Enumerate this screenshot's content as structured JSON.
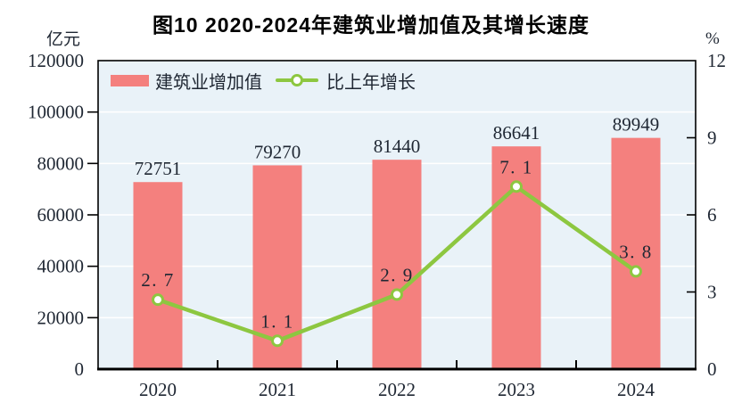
{
  "chart_data": {
    "type": "bar+line",
    "title": "图10  2020-2024年建筑业增加值及其增长速度",
    "categories": [
      "2020",
      "2021",
      "2022",
      "2023",
      "2024"
    ],
    "series": [
      {
        "name": "建筑业增加值",
        "type": "bar",
        "axis": "left",
        "unit": "亿元",
        "values": [
          72751,
          79270,
          81440,
          86641,
          89949
        ],
        "value_labels": [
          "72751",
          "79270",
          "81440",
          "86641",
          "89949"
        ]
      },
      {
        "name": "比上年增长",
        "type": "line",
        "axis": "right",
        "unit": "%",
        "values": [
          2.7,
          1.1,
          2.9,
          7.1,
          3.8
        ],
        "value_labels": [
          "2.7",
          "1.1",
          "2.9",
          "7.1",
          "3.8"
        ]
      }
    ],
    "left_axis": {
      "unit": "亿元",
      "min": 0,
      "max": 120000,
      "step": 20000,
      "tick_labels": [
        "0",
        "20000",
        "40000",
        "60000",
        "80000",
        "100000",
        "120000"
      ]
    },
    "right_axis": {
      "unit": "%",
      "min": 0,
      "max": 12,
      "step": 3,
      "tick_labels": [
        "0",
        "3",
        "6",
        "9",
        "12"
      ]
    },
    "legend": {
      "position": "inside-top-left",
      "entries": [
        "建筑业增加值",
        "比上年增长"
      ]
    },
    "grid": "horizontal white lines at every left-axis step",
    "colors": {
      "bar": "#f4807e",
      "line": "#8dc740",
      "marker_fill": "#ffffff",
      "plot_bg": "#e9f2f8",
      "grid": "#ffffff",
      "axis": "#000000",
      "text": "#1f2733",
      "title": "#000000"
    }
  }
}
